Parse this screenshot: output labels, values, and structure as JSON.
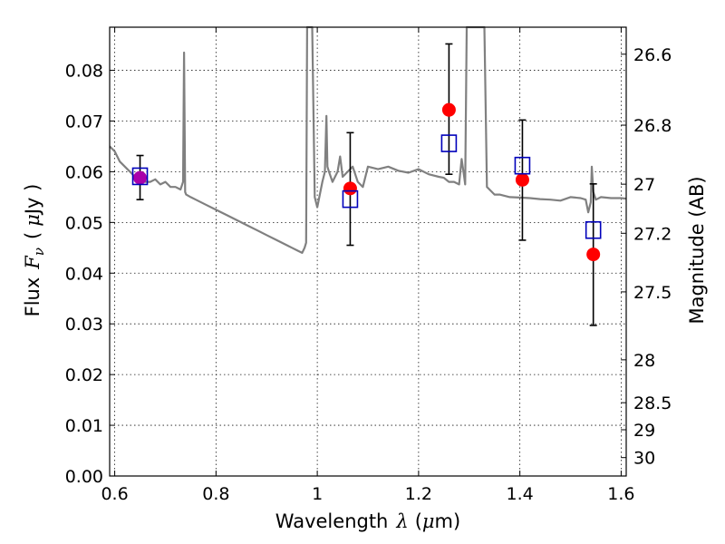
{
  "chart_data": {
    "type": "scatter",
    "xlabel_text": "Wavelength",
    "xlabel_symbol": "λ",
    "xlabel_unit_open": "(",
    "xlabel_unit_symbol": "μ",
    "xlabel_unit_rest": "m)",
    "ylabel_text": "Flux",
    "ylabel_symbol": "F",
    "ylabel_subscript": "ν",
    "ylabel_unit_open": "(",
    "ylabel_unit_symbol": "μ",
    "ylabel_unit_rest": "Jy )",
    "y2label": "Magnitude (AB)",
    "xlim": [
      0.59,
      1.61
    ],
    "ylim": [
      0.0,
      0.0885
    ],
    "grid": true,
    "x_ticks": [
      {
        "value": 0.6,
        "label": "0.6"
      },
      {
        "value": 0.8,
        "label": "0.8"
      },
      {
        "value": 1.0,
        "label": "1"
      },
      {
        "value": 1.2,
        "label": "1.2"
      },
      {
        "value": 1.4,
        "label": "1.4"
      },
      {
        "value": 1.6,
        "label": "1.6"
      }
    ],
    "y_ticks": [
      {
        "value": 0.0,
        "label": "0.00"
      },
      {
        "value": 0.01,
        "label": "0.01"
      },
      {
        "value": 0.02,
        "label": "0.02"
      },
      {
        "value": 0.03,
        "label": "0.03"
      },
      {
        "value": 0.04,
        "label": "0.04"
      },
      {
        "value": 0.05,
        "label": "0.05"
      },
      {
        "value": 0.06,
        "label": "0.06"
      },
      {
        "value": 0.07,
        "label": "0.07"
      },
      {
        "value": 0.08,
        "label": "0.08"
      }
    ],
    "y2_ticks": [
      {
        "value": 26.6,
        "label": "26.6"
      },
      {
        "value": 26.8,
        "label": "26.8"
      },
      {
        "value": 27.0,
        "label": "27"
      },
      {
        "value": 27.2,
        "label": "27.2"
      },
      {
        "value": 27.5,
        "label": "27.5"
      },
      {
        "value": 28.0,
        "label": "28"
      },
      {
        "value": 28.5,
        "label": "28.5"
      },
      {
        "value": 29.0,
        "label": "29"
      },
      {
        "value": 30.0,
        "label": "30"
      }
    ],
    "colors": {
      "spectrum": "#808080",
      "observed": "#ff0000",
      "model": "#0000bb",
      "errorbar": "#000000",
      "overlap": "#aa00aa"
    },
    "spectrum": {
      "name": "",
      "x": [
        0.59,
        0.6,
        0.61,
        0.62,
        0.63,
        0.64,
        0.65,
        0.66,
        0.67,
        0.68,
        0.69,
        0.7,
        0.71,
        0.72,
        0.73,
        0.735,
        0.737,
        0.739,
        0.741,
        0.75,
        0.76,
        0.78,
        0.8,
        0.82,
        0.84,
        0.86,
        0.88,
        0.9,
        0.92,
        0.94,
        0.95,
        0.96,
        0.97,
        0.975,
        0.978,
        0.98,
        0.982,
        0.985,
        0.99,
        0.995,
        1.0,
        1.01,
        1.015,
        1.018,
        1.02,
        1.023,
        1.03,
        1.04,
        1.045,
        1.05,
        1.06,
        1.07,
        1.08,
        1.09,
        1.1,
        1.12,
        1.14,
        1.16,
        1.18,
        1.2,
        1.22,
        1.24,
        1.25,
        1.26,
        1.27,
        1.28,
        1.285,
        1.29,
        1.292,
        1.295,
        1.3,
        1.31,
        1.32,
        1.33,
        1.335,
        1.34,
        1.35,
        1.36,
        1.38,
        1.4,
        1.42,
        1.44,
        1.46,
        1.48,
        1.5,
        1.52,
        1.53,
        1.535,
        1.54,
        1.542,
        1.545,
        1.55,
        1.56,
        1.58,
        1.6,
        1.61
      ],
      "y": [
        0.065,
        0.064,
        0.062,
        0.061,
        0.06,
        0.059,
        0.059,
        0.058,
        0.058,
        0.0585,
        0.0575,
        0.058,
        0.057,
        0.057,
        0.0565,
        0.058,
        0.0835,
        0.056,
        0.0555,
        0.055,
        0.0545,
        0.0535,
        0.0525,
        0.0515,
        0.0505,
        0.0495,
        0.0485,
        0.0475,
        0.0465,
        0.0455,
        0.045,
        0.0445,
        0.044,
        0.045,
        0.046,
        0.09,
        0.09,
        0.09,
        0.09,
        0.055,
        0.053,
        0.058,
        0.06,
        0.071,
        0.061,
        0.06,
        0.058,
        0.06,
        0.063,
        0.059,
        0.06,
        0.061,
        0.058,
        0.057,
        0.061,
        0.0605,
        0.061,
        0.0602,
        0.0598,
        0.0605,
        0.0595,
        0.059,
        0.0588,
        0.058,
        0.058,
        0.0575,
        0.0625,
        0.059,
        0.0575,
        0.09,
        0.09,
        0.09,
        0.09,
        0.09,
        0.057,
        0.0565,
        0.0555,
        0.0555,
        0.055,
        0.0549,
        0.0548,
        0.0546,
        0.0545,
        0.0543,
        0.055,
        0.0548,
        0.0545,
        0.052,
        0.054,
        0.061,
        0.056,
        0.0545,
        0.055,
        0.0548,
        0.0548,
        0.0547
      ]
    },
    "series": [
      {
        "name": "",
        "marker": "circle",
        "x": [
          0.65,
          1.065,
          1.26,
          1.405,
          1.545
        ],
        "y": [
          0.0588,
          0.0567,
          0.0722,
          0.0584,
          0.0437
        ],
        "yerr_low": [
          0.0545,
          0.0455,
          0.0595,
          0.0465,
          0.0297
        ],
        "yerr_high": [
          0.0632,
          0.0677,
          0.0852,
          0.0702,
          0.0576
        ]
      },
      {
        "name": "",
        "marker": "square",
        "x": [
          0.65,
          1.065,
          1.26,
          1.405,
          1.545
        ],
        "y": [
          0.0591,
          0.0546,
          0.0656,
          0.0612,
          0.0485
        ]
      }
    ]
  }
}
